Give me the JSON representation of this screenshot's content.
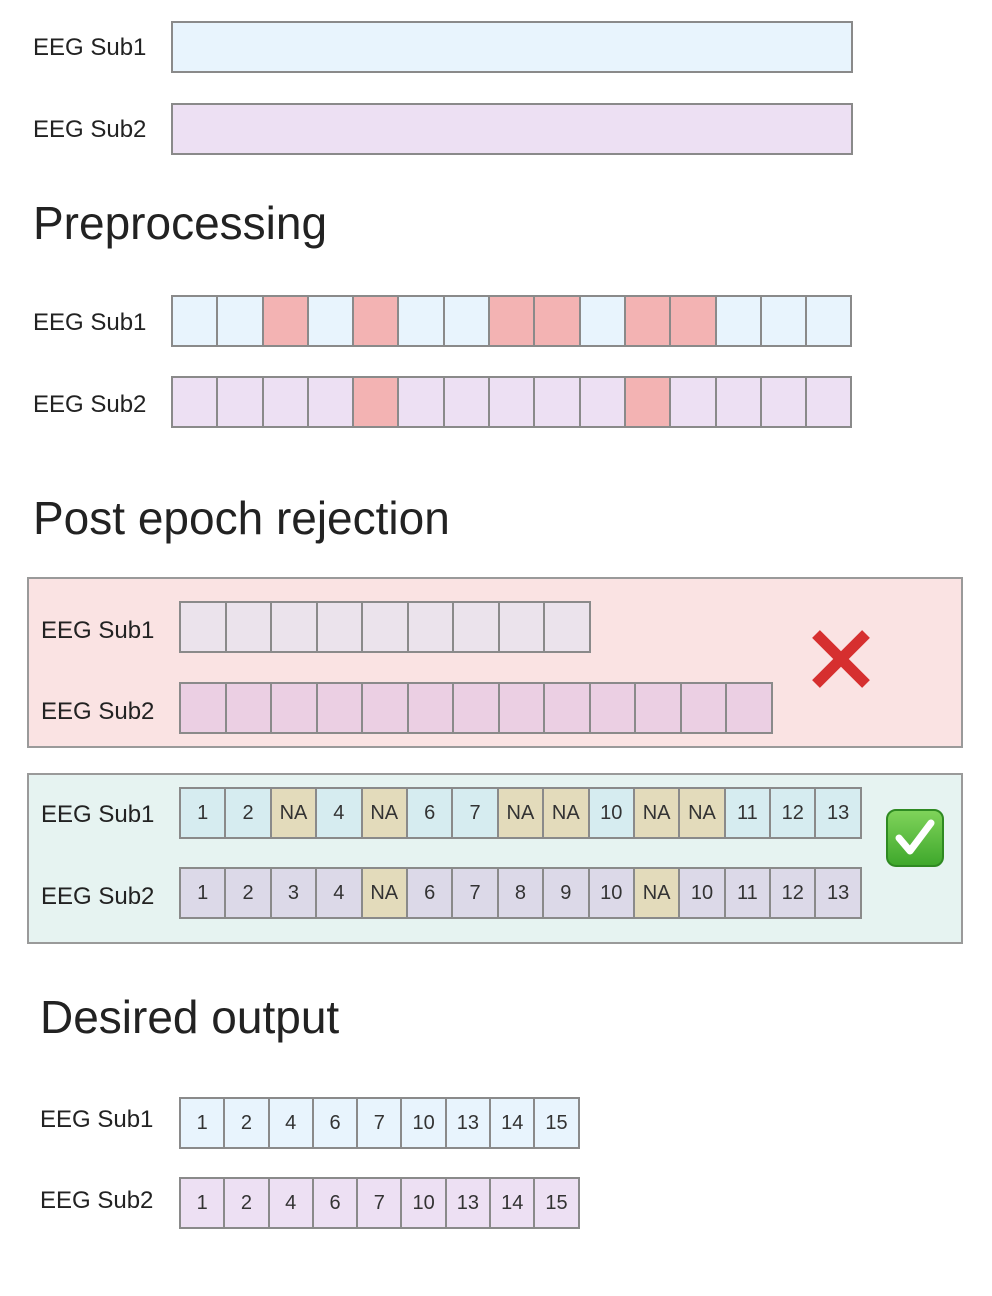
{
  "colors": {
    "sub1_fill": "#e8f4fd",
    "sub2_fill": "#ede0f3",
    "rejected_fill": "#f3b3b3",
    "reject_panel_bg": "#fae3e3",
    "reject_sub1_fill": "#ebe3ec",
    "reject_sub2_fill": "#ebcfe3",
    "accept_panel_bg": "#e6f3f1",
    "accept_sub1_fill": "#d6ecf0",
    "accept_sub2_fill": "#dcd9e8",
    "na_fill": "#e3dbbb",
    "cross_color": "#d62f2f",
    "check_color": "#4cb736"
  },
  "raw": {
    "sub1_label": "EEG Sub1",
    "sub2_label": "EEG Sub2"
  },
  "preprocessing": {
    "title": "Preprocessing",
    "sub1_label": "EEG Sub1",
    "sub2_label": "EEG Sub2",
    "sub1_epochs": [
      "ok",
      "ok",
      "rejected",
      "ok",
      "rejected",
      "ok",
      "ok",
      "rejected",
      "rejected",
      "ok",
      "rejected",
      "rejected",
      "ok",
      "ok",
      "ok"
    ],
    "sub2_epochs": [
      "ok",
      "ok",
      "ok",
      "ok",
      "rejected",
      "ok",
      "ok",
      "ok",
      "ok",
      "ok",
      "rejected",
      "ok",
      "ok",
      "ok",
      "ok"
    ]
  },
  "post_epoch_rejection": {
    "title": "Post epoch rejection",
    "wrong_approach": {
      "sub1_label": "EEG Sub1",
      "sub2_label": "EEG Sub2",
      "sub1_epoch_count": 9,
      "sub2_epoch_count": 13,
      "icon": "cross-mark-icon"
    },
    "right_approach": {
      "sub1_label": "EEG Sub1",
      "sub2_label": "EEG Sub2",
      "sub1_cells": [
        "1",
        "2",
        "NA",
        "4",
        "NA",
        "6",
        "7",
        "NA",
        "NA",
        "10",
        "NA",
        "NA",
        "11",
        "12",
        "13"
      ],
      "sub2_cells": [
        "1",
        "2",
        "3",
        "4",
        "NA",
        "6",
        "7",
        "8",
        "9",
        "10",
        "NA",
        "10",
        "11",
        "12",
        "13"
      ],
      "icon": "check-mark-button-icon"
    }
  },
  "desired_output": {
    "title": "Desired output",
    "sub1_label": "EEG Sub1",
    "sub2_label": "EEG Sub2",
    "sub1_cells": [
      "1",
      "2",
      "4",
      "6",
      "7",
      "10",
      "13",
      "14",
      "15"
    ],
    "sub2_cells": [
      "1",
      "2",
      "4",
      "6",
      "7",
      "10",
      "13",
      "14",
      "15"
    ]
  }
}
